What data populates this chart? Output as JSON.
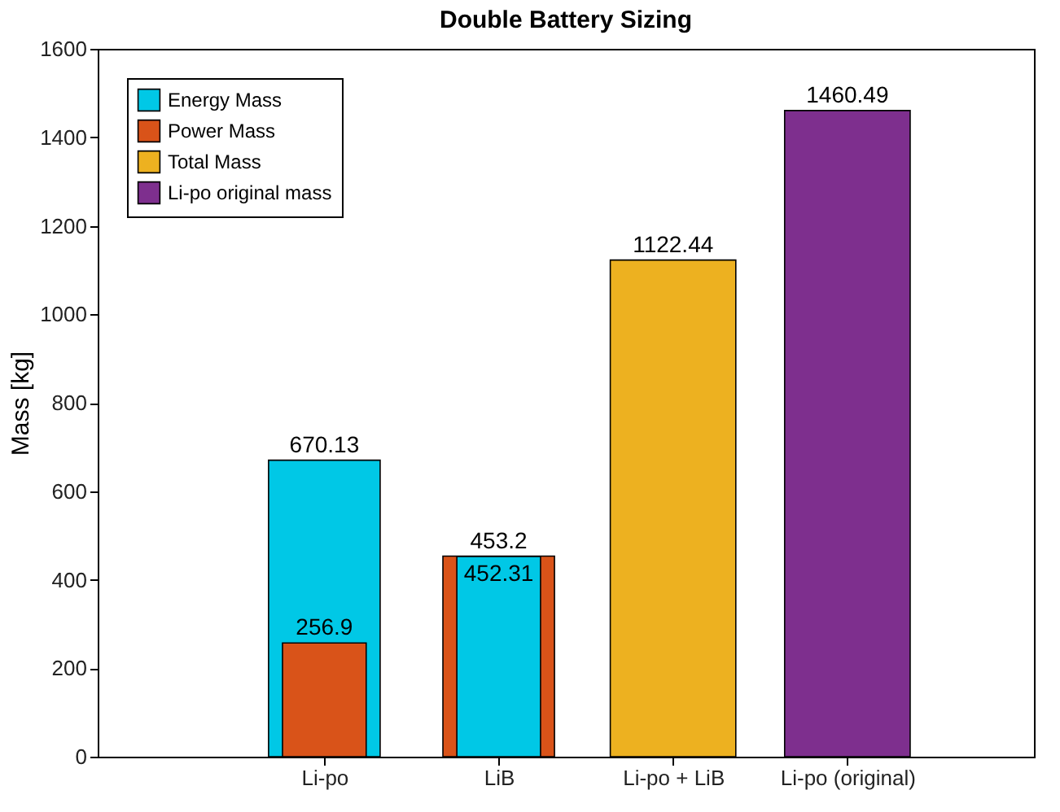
{
  "chart_data": {
    "type": "bar",
    "title": "Double Battery Sizing",
    "ylabel": "Mass [kg]",
    "categories": [
      "Li-po",
      "LiB",
      "Li-po + LiB",
      "Li-po (original)"
    ],
    "series": [
      {
        "name": "Energy Mass",
        "color": "#00c8e6",
        "values": [
          670.13,
          452.31,
          null,
          null
        ]
      },
      {
        "name": "Power Mass",
        "color": "#d95319",
        "values": [
          256.9,
          453.2,
          null,
          null
        ]
      },
      {
        "name": "Total Mass",
        "color": "#edb120",
        "values": [
          null,
          null,
          1122.44,
          null
        ]
      },
      {
        "name": "Li-po original mass",
        "color": "#7e2f8e",
        "values": [
          null,
          null,
          null,
          1460.49
        ]
      }
    ],
    "ylim": [
      0,
      1600
    ],
    "yticks": [
      0,
      200,
      400,
      600,
      800,
      1000,
      1200,
      1400,
      1600
    ],
    "data_labels": true,
    "legend": "top left"
  }
}
